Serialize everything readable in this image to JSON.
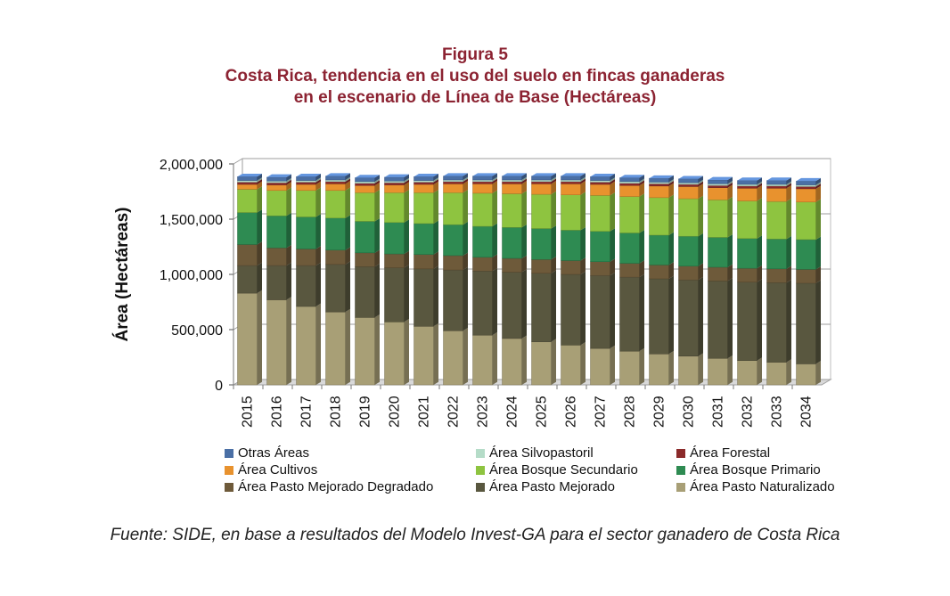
{
  "figure_label": "Figura 5",
  "title_line1": "Costa Rica, tendencia en el uso del suelo en fincas ganaderas",
  "title_line2": "en el escenario de Línea de Base (Hectáreas)",
  "source": "Fuente: SIDE, en base a resultados del Modelo Invest-GA para el sector ganadero de Costa Rica",
  "chart_data": {
    "type": "bar",
    "stacked": true,
    "three_d": true,
    "ylabel": "Área (Hectáreas)",
    "ylim": [
      0,
      2000000
    ],
    "yticks": [
      {
        "value": 0,
        "label": "0"
      },
      {
        "value": 500000,
        "label": "500,000"
      },
      {
        "value": 1000000,
        "label": "1,000,000"
      },
      {
        "value": 1500000,
        "label": "1,500,000"
      },
      {
        "value": 2000000,
        "label": "2,000,000"
      }
    ],
    "grid": true,
    "legend_position": "bottom",
    "categories": [
      "2015",
      "2016",
      "2017",
      "2018",
      "2019",
      "2020",
      "2021",
      "2022",
      "2023",
      "2024",
      "2025",
      "2026",
      "2027",
      "2028",
      "2029",
      "2030",
      "2031",
      "2032",
      "2033",
      "2034"
    ],
    "series": [
      {
        "name": "Área Pasto Naturalizado",
        "color": "#a89f76",
        "values": [
          830000,
          770000,
          710000,
          660000,
          610000,
          570000,
          530000,
          490000,
          450000,
          420000,
          390000,
          360000,
          330000,
          305000,
          280000,
          260000,
          240000,
          220000,
          205000,
          190000
        ]
      },
      {
        "name": "Área Pasto Mejorado",
        "color": "#59573f",
        "values": [
          250000,
          310000,
          370000,
          430000,
          460000,
          490000,
          520000,
          550000,
          580000,
          600000,
          620000,
          640000,
          660000,
          670000,
          680000,
          690000,
          700000,
          710000,
          720000,
          730000
        ]
      },
      {
        "name": "Área Pasto Mejorado Degradado",
        "color": "#6e5a3a",
        "values": [
          190000,
          160000,
          150000,
          130000,
          125000,
          125000,
          130000,
          130000,
          125000,
          125000,
          125000,
          125000,
          125000,
          125000,
          125000,
          125000,
          125000,
          125000,
          125000,
          125000
        ]
      },
      {
        "name": "Área Bosque Primario",
        "color": "#2e8b52",
        "values": [
          290000,
          290000,
          290000,
          290000,
          285000,
          285000,
          280000,
          280000,
          280000,
          280000,
          280000,
          275000,
          275000,
          275000,
          270000,
          270000,
          270000,
          270000,
          270000,
          270000
        ]
      },
      {
        "name": "Área Bosque Secundario",
        "color": "#8ec440",
        "values": [
          210000,
          230000,
          240000,
          250000,
          260000,
          270000,
          280000,
          290000,
          300000,
          305000,
          310000,
          320000,
          325000,
          330000,
          340000,
          340000,
          340000,
          340000,
          340000,
          340000
        ]
      },
      {
        "name": "Área Cultivos",
        "color": "#e8922e",
        "values": [
          45000,
          50000,
          55000,
          60000,
          65000,
          70000,
          75000,
          80000,
          85000,
          90000,
          95000,
          100000,
          100000,
          100000,
          105000,
          110000,
          110000,
          115000,
          120000,
          120000
        ]
      },
      {
        "name": "Área Forestal",
        "color": "#8b2a2a",
        "values": [
          20000,
          20000,
          20000,
          20000,
          20000,
          20000,
          20000,
          20000,
          20000,
          20000,
          20000,
          20000,
          20000,
          20000,
          20000,
          20000,
          20000,
          20000,
          20000,
          20000
        ]
      },
      {
        "name": "Área Silvopastoril",
        "color": "#b5dcc8",
        "values": [
          15000,
          15000,
          15000,
          15000,
          15000,
          15000,
          15000,
          15000,
          15000,
          15000,
          15000,
          15000,
          15000,
          15000,
          15000,
          15000,
          15000,
          15000,
          15000,
          15000
        ]
      },
      {
        "name": "Otras Áreas",
        "color": "#4a6fa5",
        "values": [
          35000,
          35000,
          35000,
          35000,
          35000,
          35000,
          35000,
          35000,
          35000,
          35000,
          35000,
          35000,
          35000,
          35000,
          35000,
          35000,
          35000,
          35000,
          35000,
          35000
        ]
      }
    ],
    "legend_order": [
      "Otras Áreas",
      "Área Silvopastoril",
      "Área Forestal",
      "Área Cultivos",
      "Área Bosque Secundario",
      "Área Bosque Primario",
      "Área Pasto Mejorado Degradado",
      "Área Pasto Mejorado",
      "Área Pasto Naturalizado"
    ]
  }
}
